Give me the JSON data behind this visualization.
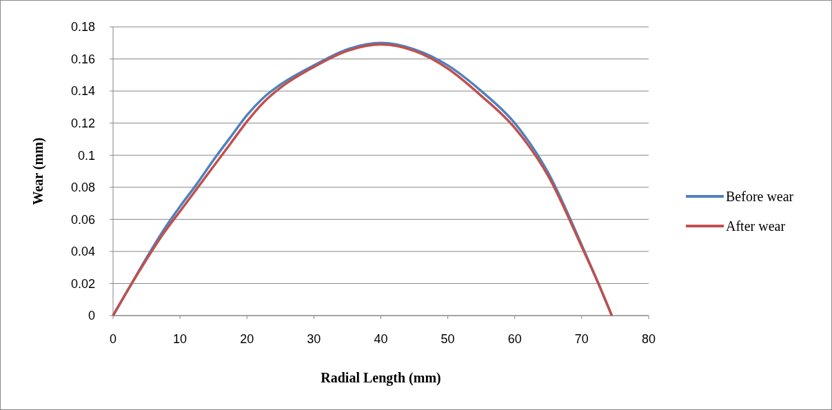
{
  "chart_data": {
    "type": "line",
    "xlabel": "Radial Length (mm)",
    "ylabel": "Wear (mm)",
    "xlim": [
      0,
      80
    ],
    "xticks": [
      0,
      10,
      20,
      30,
      40,
      50,
      60,
      70,
      80
    ],
    "ylim": [
      0,
      0.18
    ],
    "yticks": [
      0,
      0.02,
      0.04,
      0.06,
      0.08,
      0.1,
      0.12,
      0.14,
      0.16,
      0.18
    ],
    "grid": "y",
    "legend": "right",
    "marker": "none",
    "line_style": "solid",
    "x": [
      0,
      2.5,
      5,
      7.5,
      10,
      12.5,
      15,
      17.5,
      20,
      22.5,
      25,
      30,
      35,
      40,
      45,
      50,
      55,
      60,
      65,
      70,
      72.5,
      74.5
    ],
    "series": [
      {
        "name": "Before wear",
        "color": "#4f81bd",
        "values": [
          0,
          0.018,
          0.036,
          0.053,
          0.068,
          0.082,
          0.097,
          0.111,
          0.125,
          0.136,
          0.144,
          0.156,
          0.166,
          0.17,
          0.166,
          0.156,
          0.14,
          0.12,
          0.089,
          0.044,
          0.02,
          0
        ]
      },
      {
        "name": "After wear",
        "color": "#c0504d",
        "values": [
          0,
          0.018,
          0.035,
          0.051,
          0.065,
          0.079,
          0.093,
          0.107,
          0.121,
          0.133,
          0.142,
          0.155,
          0.165,
          0.169,
          0.165,
          0.154,
          0.137,
          0.117,
          0.087,
          0.043,
          0.02,
          0
        ]
      }
    ]
  }
}
